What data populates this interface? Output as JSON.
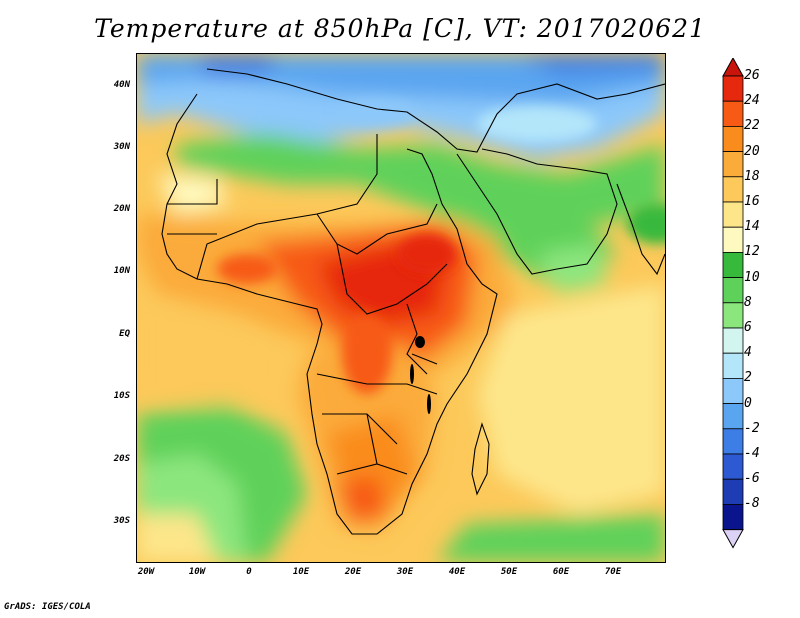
{
  "title": "Temperature at 850hPa [C], VT: 2017020621",
  "credit": "GrADS: IGES/COLA",
  "lat_labels": [
    "40N",
    "30N",
    "20N",
    "10N",
    "EQ",
    "10S",
    "20S",
    "30S"
  ],
  "lon_labels": [
    "20W",
    "10W",
    "0",
    "10E",
    "20E",
    "30E",
    "40E",
    "50E",
    "60E",
    "70E"
  ],
  "colorbar": {
    "labels": [
      "26",
      "24",
      "22",
      "20",
      "18",
      "16",
      "14",
      "12",
      "10",
      "8",
      "6",
      "4",
      "2",
      "0",
      "-2",
      "-4",
      "-6",
      "-8"
    ],
    "colors": [
      "#e6280f",
      "#f75a14",
      "#fa8c1e",
      "#fbab3a",
      "#fcc95a",
      "#fde68a",
      "#fef9bf",
      "#37b93c",
      "#5ed15a",
      "#8ce67e",
      "#d2f5f0",
      "#b4e6fa",
      "#8cc8fa",
      "#5aa5f0",
      "#3c7de6",
      "#2d5ad2",
      "#1e3cb4",
      "#0a148c"
    ],
    "over_color": "#c8140a",
    "under_color": "#dcd2f5"
  }
}
